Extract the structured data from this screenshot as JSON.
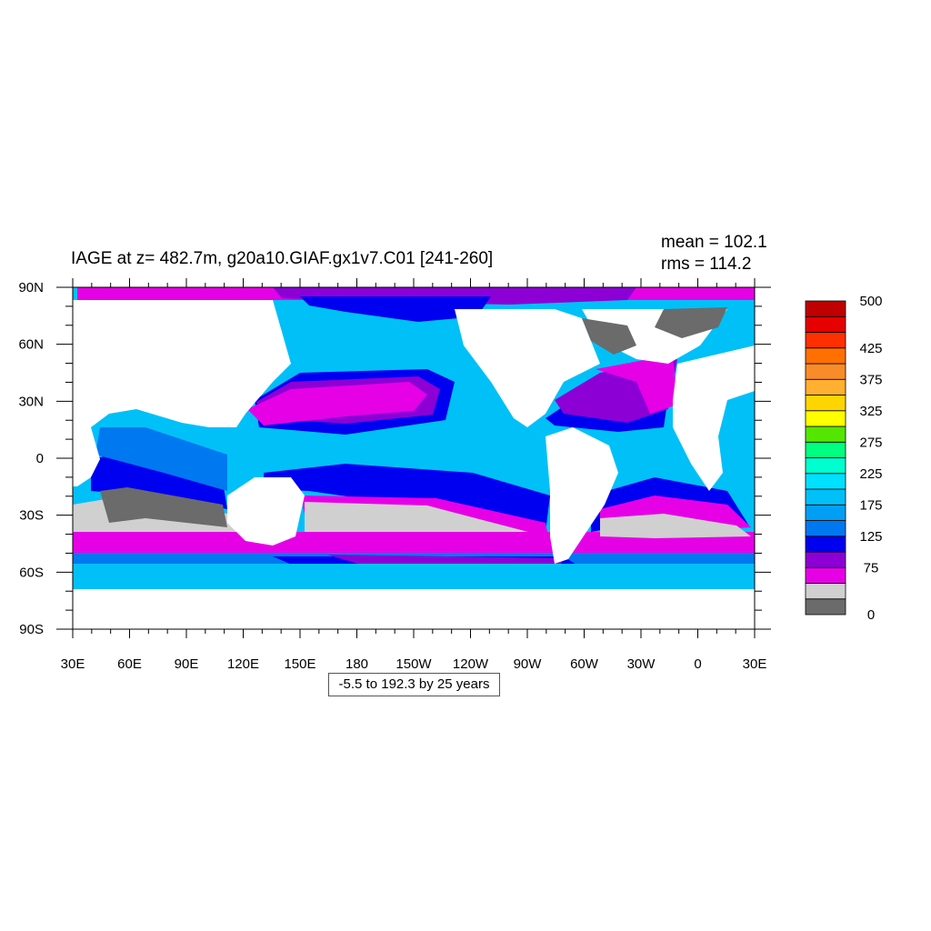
{
  "title": "IAGE at z= 482.7m, g20a10.GIAF.gx1v7.C01 [241-260]",
  "stats": {
    "mean": "mean = 102.1",
    "rms": "rms = 114.2"
  },
  "contour_info": "-5.5 to 192.3 by 25 years",
  "map": {
    "projection": "cylindrical equidistant",
    "lon_range": [
      30,
      390
    ],
    "lat_range": [
      -90,
      90
    ],
    "lon_ticks": [
      "30E",
      "60E",
      "90E",
      "120E",
      "150E",
      "180",
      "150W",
      "120W",
      "90W",
      "60W",
      "30W",
      "0",
      "30E"
    ],
    "lat_ticks": [
      "90N",
      "60N",
      "30N",
      "0",
      "30S",
      "60S",
      "90S"
    ],
    "land_color": "#ffffff"
  },
  "colorbar": {
    "colors": [
      "#6b6b6b",
      "#d0d0d0",
      "#e600e6",
      "#8c00d6",
      "#0000f0",
      "#0078f0",
      "#009ff5",
      "#00c0f8",
      "#00e0ff",
      "#00ffd0",
      "#00ff80",
      "#55e600",
      "#ffff00",
      "#ffd500",
      "#ffb030",
      "#f88c28",
      "#ff7000",
      "#ff3000",
      "#e60000",
      "#c00000"
    ],
    "labels": [
      "0",
      "75",
      "125",
      "175",
      "225",
      "275",
      "325",
      "375",
      "425",
      "500"
    ]
  }
}
